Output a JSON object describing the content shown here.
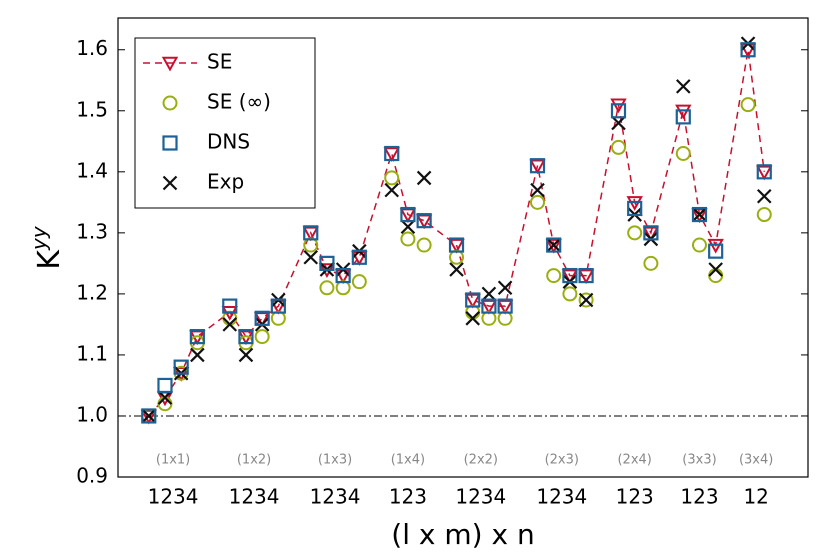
{
  "chart_data": {
    "type": "scatter",
    "ylabel": {
      "base": "K",
      "sup": "yy"
    },
    "xlabel": "(l x m) x n",
    "x": [
      1,
      2,
      3,
      4,
      6,
      7,
      8,
      9,
      11,
      12,
      13,
      14,
      16,
      17,
      18,
      20,
      21,
      22,
      23,
      25,
      26,
      27,
      28,
      30,
      31,
      32,
      34,
      35,
      36,
      38,
      39
    ],
    "series": [
      {
        "name": "SE",
        "color": "#c8102e",
        "marker": "triangle-down",
        "line": "dashed",
        "values": [
          1.0,
          1.03,
          1.07,
          1.13,
          1.17,
          1.13,
          1.16,
          1.18,
          1.3,
          1.24,
          1.23,
          1.26,
          1.43,
          1.33,
          1.32,
          1.28,
          1.19,
          1.18,
          1.18,
          1.41,
          1.28,
          1.23,
          1.23,
          1.51,
          1.35,
          1.3,
          1.5,
          1.33,
          1.28,
          1.6,
          1.4
        ]
      },
      {
        "name": "SE (∞)",
        "color": "#9aae0f",
        "marker": "circle",
        "values": [
          1.0,
          1.02,
          1.07,
          1.12,
          1.16,
          1.12,
          1.13,
          1.16,
          1.28,
          1.21,
          1.21,
          1.22,
          1.39,
          1.29,
          1.28,
          1.26,
          1.17,
          1.16,
          1.16,
          1.35,
          1.23,
          1.2,
          1.19,
          1.44,
          1.3,
          1.25,
          1.43,
          1.28,
          1.23,
          1.51,
          1.33
        ]
      },
      {
        "name": "DNS",
        "color": "#1c6296",
        "marker": "square",
        "values": [
          1.0,
          1.05,
          1.08,
          1.13,
          1.18,
          1.13,
          1.16,
          1.18,
          1.3,
          1.25,
          1.23,
          1.26,
          1.43,
          1.33,
          1.32,
          1.28,
          1.19,
          1.18,
          1.18,
          1.41,
          1.28,
          1.23,
          1.23,
          1.5,
          1.34,
          1.3,
          1.49,
          1.33,
          1.27,
          1.6,
          1.4
        ]
      },
      {
        "name": "Exp",
        "color": "#111111",
        "marker": "x",
        "values": [
          1.0,
          1.03,
          1.07,
          1.1,
          1.15,
          1.1,
          1.15,
          1.19,
          1.26,
          1.24,
          1.24,
          1.27,
          1.37,
          1.31,
          1.39,
          1.24,
          1.16,
          1.2,
          1.21,
          1.37,
          1.28,
          1.22,
          1.19,
          1.48,
          1.33,
          1.29,
          1.54,
          1.33,
          1.24,
          1.61,
          1.36
        ]
      }
    ],
    "xlim": [
      -0.9,
      41.7
    ],
    "xticks": [
      {
        "value": 2.5,
        "label": "1234"
      },
      {
        "value": 7.5,
        "label": "1234"
      },
      {
        "value": 12.5,
        "label": "1234"
      },
      {
        "value": 17,
        "label": "123"
      },
      {
        "value": 21.5,
        "label": "1234"
      },
      {
        "value": 26.5,
        "label": "1234"
      },
      {
        "value": 31,
        "label": "123"
      },
      {
        "value": 35,
        "label": "123"
      },
      {
        "value": 38.5,
        "label": "12"
      }
    ],
    "groups": [
      {
        "x": 2.5,
        "label": "(1x1)"
      },
      {
        "x": 7.5,
        "label": "(1x2)"
      },
      {
        "x": 12.5,
        "label": "(1x3)"
      },
      {
        "x": 17,
        "label": "(1x4)"
      },
      {
        "x": 21.5,
        "label": "(2x2)"
      },
      {
        "x": 26.5,
        "label": "(2x3)"
      },
      {
        "x": 31,
        "label": "(2x4)"
      },
      {
        "x": 35,
        "label": "(3x3)"
      },
      {
        "x": 38.5,
        "label": "(3x4)"
      }
    ],
    "ylim": [
      0.9,
      1.652
    ],
    "yticks": [
      {
        "value": 0.9,
        "label": "0.9"
      },
      {
        "value": 1.0,
        "label": "1.0"
      },
      1.1,
      1.2,
      1.3,
      1.4,
      1.5,
      1.6
    ],
    "hline": 1.0,
    "legend": "upper left"
  }
}
